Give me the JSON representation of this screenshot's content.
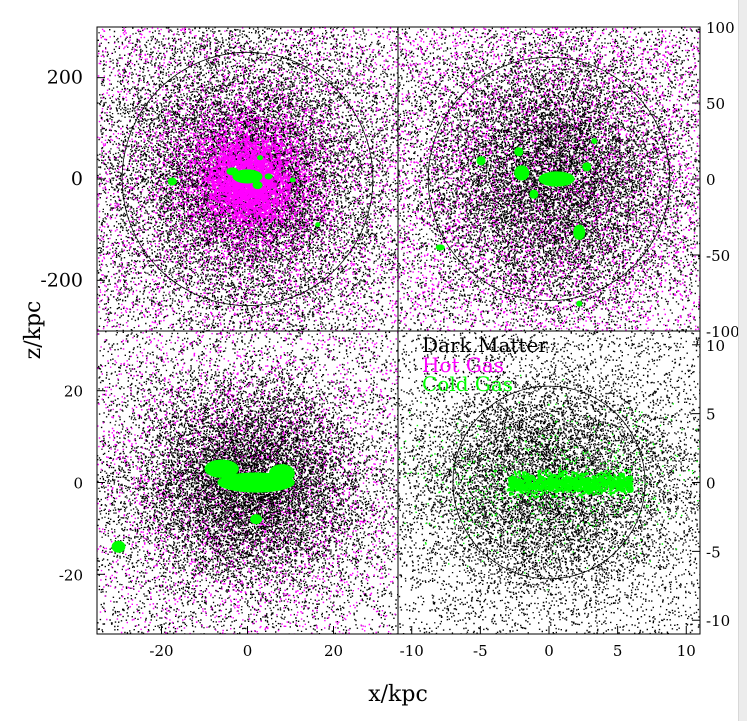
{
  "chart_data": {
    "type": "scatter",
    "xlabel": "x/kpc",
    "ylabel": "z/kpc",
    "colors": {
      "dark_matter": "#000000",
      "hot_gas": "#ff00ff",
      "cold_gas": "#00ff00"
    },
    "legend": {
      "placement": "top-left of bottom-right panel",
      "entries": [
        {
          "key": "dark_matter",
          "label": "Dark Matter"
        },
        {
          "key": "hot_gas",
          "label": "Hot Gas"
        },
        {
          "key": "cold_gas",
          "label": "Cold Gas"
        }
      ]
    },
    "panels": [
      {
        "id": "top-left",
        "xlim": [
          -300,
          300
        ],
        "ylim": [
          -300,
          300
        ],
        "yticks": [
          "200",
          "0",
          "-200"
        ],
        "yticks_side": "left",
        "xticks": [],
        "circle_radius": 250,
        "dm": {
          "n": 12000,
          "sigma": 160,
          "aspect": 1.0
        },
        "hot": {
          "n": 5000,
          "sigma": 80,
          "aspect": 1.0,
          "core_n": 2200,
          "core_sigma": 38
        },
        "cold_blobs": [
          {
            "x": 0,
            "y": 5,
            "w": 30,
            "h": 14
          },
          {
            "x": -30,
            "y": 15,
            "w": 12,
            "h": 8
          },
          {
            "x": 20,
            "y": -12,
            "w": 10,
            "h": 8
          },
          {
            "x": 42,
            "y": 5,
            "w": 8,
            "h": 6
          },
          {
            "x": -150,
            "y": -5,
            "w": 9,
            "h": 8
          },
          {
            "x": 90,
            "y": -2,
            "w": 6,
            "h": 5
          },
          {
            "x": 25,
            "y": 42,
            "w": 6,
            "h": 5
          },
          {
            "x": 140,
            "y": -90,
            "w": 4,
            "h": 4
          }
        ]
      },
      {
        "id": "top-right",
        "xlim": [
          -100,
          100
        ],
        "ylim": [
          -100,
          100
        ],
        "yticks": [
          "100",
          "50",
          "0",
          "-50",
          "-100"
        ],
        "yticks_side": "right",
        "xticks": [],
        "circle_radius": 80,
        "dm": {
          "n": 12000,
          "sigma": 45,
          "aspect": 1.0
        },
        "hot": {
          "n": 3500,
          "sigma": 60,
          "aspect": 1.0,
          "core_n": 0,
          "core_sigma": 20
        },
        "cold_blobs": [
          {
            "x": 5,
            "y": 0,
            "w": 12,
            "h": 5
          },
          {
            "x": -18,
            "y": 4,
            "w": 5,
            "h": 5
          },
          {
            "x": -45,
            "y": 12,
            "w": 3,
            "h": 3
          },
          {
            "x": -20,
            "y": 18,
            "w": 3,
            "h": 3
          },
          {
            "x": 20,
            "y": -35,
            "w": 4,
            "h": 5
          },
          {
            "x": 25,
            "y": 8,
            "w": 3,
            "h": 3
          },
          {
            "x": -10,
            "y": -10,
            "w": 3,
            "h": 3
          },
          {
            "x": -72,
            "y": -45,
            "w": 3,
            "h": 2
          },
          {
            "x": 20,
            "y": -82,
            "w": 2,
            "h": 2
          },
          {
            "x": 30,
            "y": 25,
            "w": 2,
            "h": 2
          }
        ]
      },
      {
        "id": "bottom-left",
        "xlim": [
          -35,
          35
        ],
        "ylim": [
          -33,
          33
        ],
        "yticks": [
          "20",
          "0",
          "-20"
        ],
        "yticks_side": "left",
        "xticks": [
          "-20",
          "0",
          "20"
        ],
        "circle_radius": 0,
        "dm": {
          "n": 11000,
          "sigma": 14,
          "aspect": 0.85
        },
        "hot": {
          "n": 2200,
          "sigma": 16,
          "aspect": 0.9,
          "core_n": 0,
          "core_sigma": 8
        },
        "cold_blobs": [
          {
            "x": 2,
            "y": 0,
            "w": 9,
            "h": 2.2
          },
          {
            "x": -6,
            "y": 3,
            "w": 4,
            "h": 2
          },
          {
            "x": 8,
            "y": 2,
            "w": 3,
            "h": 2
          },
          {
            "x": 2,
            "y": -8,
            "w": 1.4,
            "h": 1.1
          },
          {
            "x": -30,
            "y": -14,
            "w": 1.6,
            "h": 1.3
          }
        ]
      },
      {
        "id": "bottom-right",
        "xlim": [
          -11,
          11
        ],
        "ylim": [
          -11,
          11
        ],
        "yticks": [
          "10",
          "5",
          "0",
          "-5",
          "-10"
        ],
        "yticks_side": "right",
        "xticks": [
          "-10",
          "-5",
          "0",
          "5",
          "10"
        ],
        "circle_radius": 7,
        "dm": {
          "n": 9000,
          "sigma": 5,
          "aspect": 0.8
        },
        "hot": {
          "n": 0,
          "sigma": 5,
          "aspect": 1.0,
          "core_n": 0,
          "core_sigma": 2
        },
        "cold_disk": {
          "x0": -3,
          "x1": 6,
          "y": 0,
          "thickness": 0.35,
          "n": 1200
        },
        "cold_scatter": {
          "n": 700,
          "sigma_x": 6,
          "sigma_y": 2.5
        },
        "cold_blobs": []
      }
    ]
  }
}
